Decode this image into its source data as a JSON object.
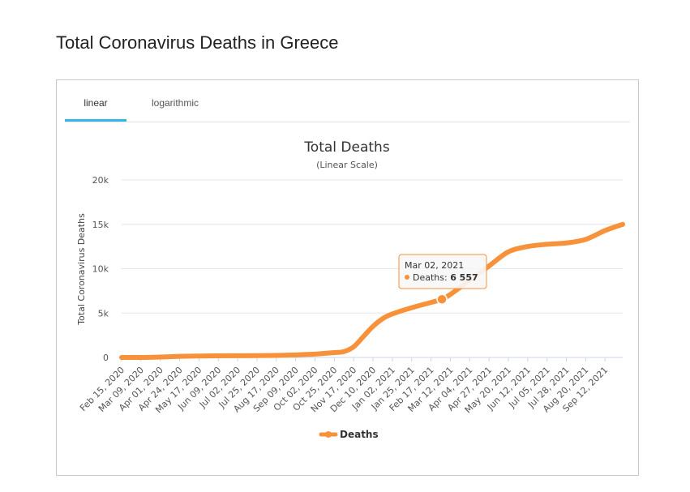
{
  "page": {
    "title": "Total Coronavirus Deaths in Greece"
  },
  "tabs": [
    {
      "label": "linear",
      "active": true
    },
    {
      "label": "logarithmic",
      "active": false
    }
  ],
  "colors": {
    "series": "#f7913a",
    "tab_accent": "#33b5e5",
    "grid": "#e6e6e6"
  },
  "chart_data": {
    "type": "line",
    "title": "Total Deaths",
    "subtitle": "(Linear Scale)",
    "ylabel": "Total Coronavirus Deaths",
    "xlabel": "",
    "ylim": [
      0,
      20000
    ],
    "y_ticks": [
      "0",
      "5k",
      "10k",
      "15k",
      "20k"
    ],
    "y_tick_values": [
      0,
      5000,
      10000,
      15000,
      20000
    ],
    "grid": true,
    "legend_position": "bottom-center",
    "categories": [
      "Feb 15, 2020",
      "Mar 09, 2020",
      "Apr 01, 2020",
      "Apr 24, 2020",
      "May 17, 2020",
      "Jun 09, 2020",
      "Jul 02, 2020",
      "Jul 25, 2020",
      "Aug 17, 2020",
      "Sep 09, 2020",
      "Oct 02, 2020",
      "Oct 25, 2020",
      "Nov 17, 2020",
      "Dec 10, 2020",
      "Jan 02, 2021",
      "Jan 25, 2021",
      "Feb 17, 2021",
      "Mar 12, 2021",
      "Apr 04, 2021",
      "Apr 27, 2021",
      "May 20, 2021",
      "Jun 12, 2021",
      "Jul 05, 2021",
      "Jul 28, 2021",
      "Aug 20, 2021",
      "Sep 12, 2021"
    ],
    "x_range": [
      "Feb 15, 2020",
      "Oct 03, 2021"
    ],
    "series": [
      {
        "name": "Deaths",
        "color": "#f7913a",
        "points": [
          [
            "Feb 15, 2020",
            0
          ],
          [
            "Mar 09, 2020",
            1
          ],
          [
            "Apr 01, 2020",
            50
          ],
          [
            "Apr 24, 2020",
            125
          ],
          [
            "May 17, 2020",
            160
          ],
          [
            "Jun 09, 2020",
            180
          ],
          [
            "Jul 02, 2020",
            192
          ],
          [
            "Jul 25, 2020",
            203
          ],
          [
            "Aug 17, 2020",
            230
          ],
          [
            "Sep 09, 2020",
            290
          ],
          [
            "Oct 02, 2020",
            380
          ],
          [
            "Oct 25, 2020",
            550
          ],
          [
            "Nov 05, 2020",
            650
          ],
          [
            "Nov 17, 2020",
            1200
          ],
          [
            "Nov 28, 2020",
            2300
          ],
          [
            "Dec 10, 2020",
            3500
          ],
          [
            "Dec 22, 2020",
            4400
          ],
          [
            "Jan 02, 2021",
            4900
          ],
          [
            "Jan 25, 2021",
            5600
          ],
          [
            "Feb 17, 2021",
            6200
          ],
          [
            "Mar 02, 2021",
            6557
          ],
          [
            "Mar 12, 2021",
            7100
          ],
          [
            "Apr 04, 2021",
            8700
          ],
          [
            "Apr 27, 2021",
            10300
          ],
          [
            "May 20, 2021",
            11900
          ],
          [
            "Jun 12, 2021",
            12500
          ],
          [
            "Jul 05, 2021",
            12750
          ],
          [
            "Jul 28, 2021",
            12900
          ],
          [
            "Aug 20, 2021",
            13300
          ],
          [
            "Sep 12, 2021",
            14300
          ],
          [
            "Oct 03, 2021",
            15000
          ]
        ]
      }
    ],
    "tooltip": {
      "date": "Mar 02, 2021",
      "series": "Deaths",
      "value_text": "6 557",
      "value": 6557
    }
  }
}
